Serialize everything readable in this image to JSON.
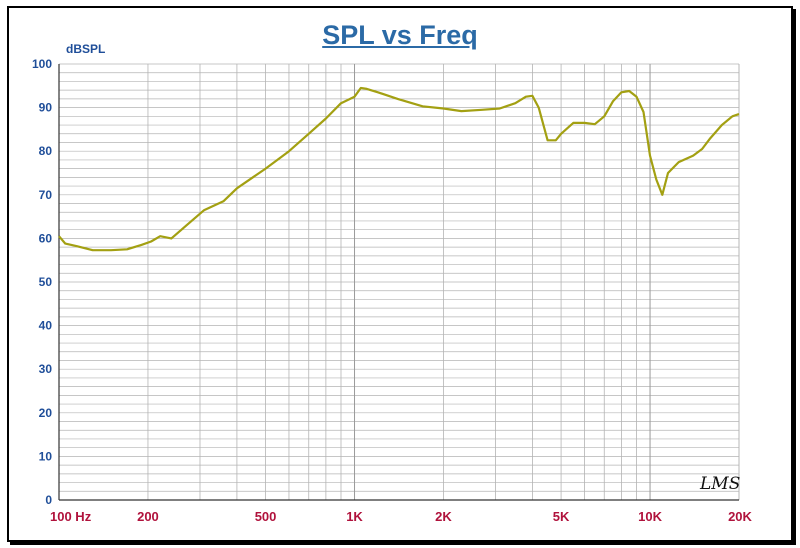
{
  "chart_data": {
    "type": "line",
    "title": "SPL vs Freq",
    "ylabel": "dBSPL",
    "xlabel": "",
    "xscale": "log",
    "xlim": [
      100,
      20000
    ],
    "ylim": [
      0,
      100
    ],
    "y_ticks": [
      0,
      10,
      20,
      30,
      40,
      50,
      60,
      70,
      80,
      90,
      100
    ],
    "x_tick_labels": [
      {
        "value": 100,
        "label": "100  Hz"
      },
      {
        "value": 200,
        "label": "200"
      },
      {
        "value": 500,
        "label": "500"
      },
      {
        "value": 1000,
        "label": "1K"
      },
      {
        "value": 2000,
        "label": "2K"
      },
      {
        "value": 5000,
        "label": "5K"
      },
      {
        "value": 10000,
        "label": "10K"
      },
      {
        "value": 20000,
        "label": "20K"
      }
    ],
    "grid": true,
    "colors": {
      "line": "#a3a012",
      "axis_labels": "#1f4e99",
      "x_labels": "#b0123c",
      "title": "#2b6aa6",
      "grid": "#b4b4b4"
    },
    "series": [
      {
        "x": [
          100,
          105,
          115,
          130,
          150,
          170,
          190,
          205,
          220,
          240,
          270,
          310,
          360,
          400,
          500,
          600,
          700,
          800,
          900,
          1000,
          1050,
          1100,
          1200,
          1400,
          1700,
          2000,
          2300,
          2700,
          3100,
          3500,
          3800,
          4000,
          4200,
          4500,
          4800,
          5000,
          5500,
          6000,
          6500,
          7000,
          7500,
          8000,
          8500,
          9000,
          9500,
          10000,
          10500,
          11000,
          11500,
          12500,
          14000,
          15000,
          16000,
          17500,
          19000,
          20000
        ],
        "y": [
          60.5,
          58.8,
          58.2,
          57.3,
          57.3,
          57.5,
          58.5,
          59.3,
          60.5,
          60,
          63,
          66.5,
          68.5,
          71.5,
          76,
          80,
          84,
          87.5,
          91,
          92.5,
          94.5,
          94.3,
          93.5,
          92,
          90.3,
          89.8,
          89.2,
          89.5,
          89.8,
          91,
          92.5,
          92.7,
          90,
          82.5,
          82.5,
          84,
          86.5,
          86.5,
          86.2,
          88,
          91.5,
          93.5,
          93.8,
          92.5,
          89,
          79,
          73.5,
          70,
          75,
          77.5,
          79,
          80.5,
          83,
          86,
          88,
          88.5
        ]
      }
    ],
    "logo_text": "LMS"
  }
}
